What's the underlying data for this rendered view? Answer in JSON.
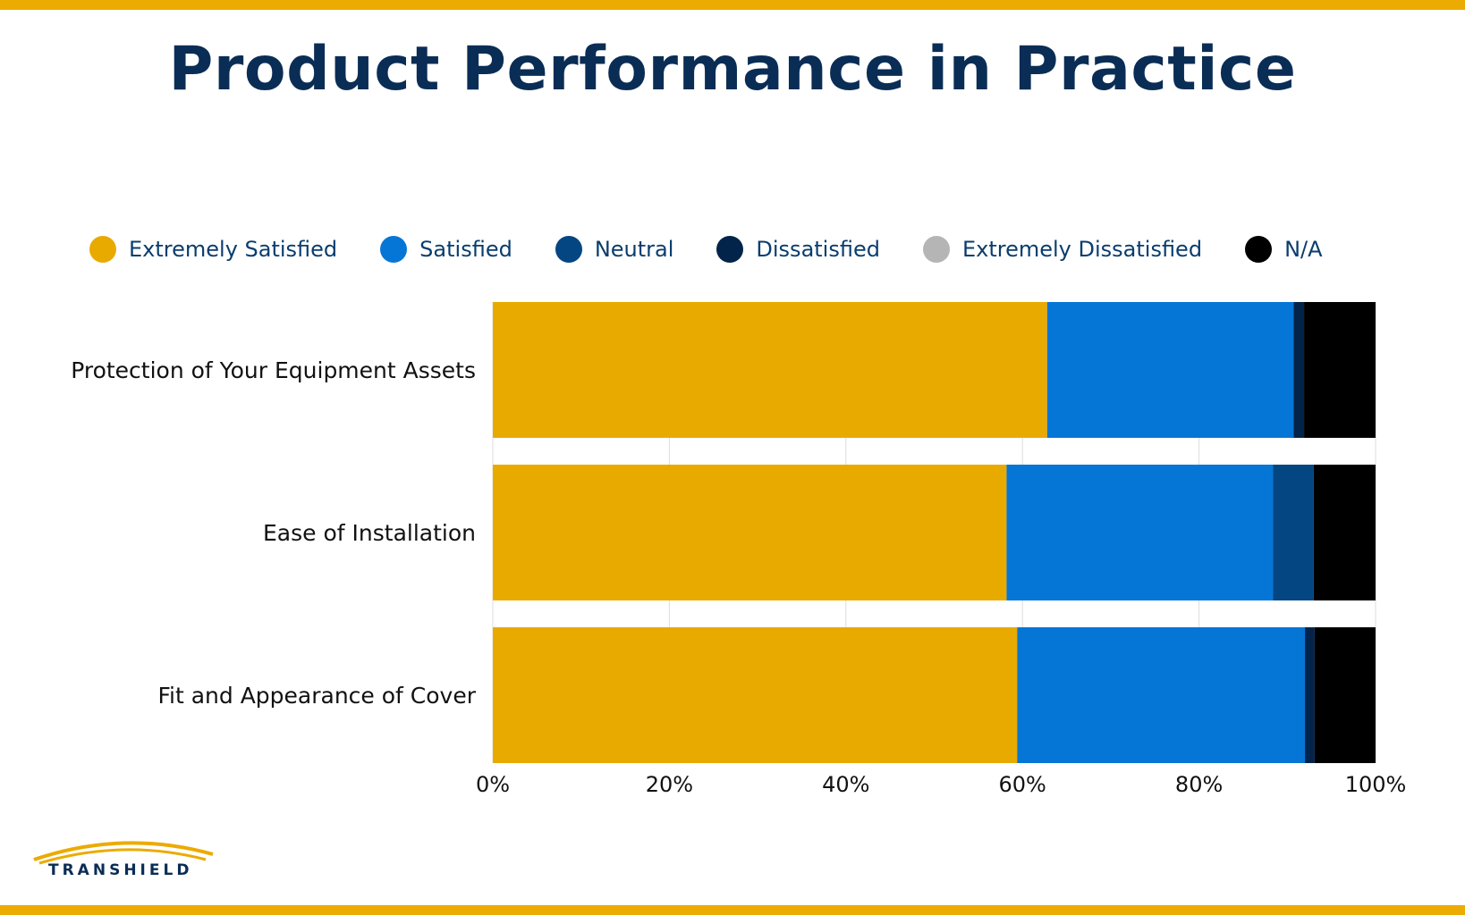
{
  "title": "Product Performance in Practice",
  "brand": {
    "name": "TRANSHIELD",
    "accent_color": "#ebab00",
    "title_color": "#0a2d55"
  },
  "legend": [
    {
      "label": "Extremely Satisfied",
      "color": "#e9aa00"
    },
    {
      "label": "Satisfied",
      "color": "#0676d6"
    },
    {
      "label": "Neutral",
      "color": "#034682"
    },
    {
      "label": "Dissatisfied",
      "color": "#03244a"
    },
    {
      "label": "Extremely Dissatisfied",
      "color": "#b5b5b5"
    },
    {
      "label": "N/A",
      "color": "#000000"
    }
  ],
  "chart_data": {
    "type": "bar",
    "orientation": "horizontal",
    "stacked": true,
    "title": "Product Performance in Practice",
    "categories": [
      "Protection of Your Equipment Assets",
      "Ease of Installation",
      "Fit and Appearance of Cover"
    ],
    "series": [
      {
        "name": "Extremely Satisfied",
        "color": "#e9aa00",
        "values": [
          62.8,
          58.2,
          59.4
        ]
      },
      {
        "name": "Satisfied",
        "color": "#0676d6",
        "values": [
          27.9,
          30.2,
          32.6
        ]
      },
      {
        "name": "Neutral",
        "color": "#034682",
        "values": [
          0.0,
          4.6,
          0.0
        ]
      },
      {
        "name": "Dissatisfied",
        "color": "#03244a",
        "values": [
          1.2,
          0.0,
          1.1
        ]
      },
      {
        "name": "Extremely Dissatisfied",
        "color": "#b5b5b5",
        "values": [
          0.0,
          0.0,
          0.0
        ]
      },
      {
        "name": "N/A",
        "color": "#000000",
        "values": [
          8.1,
          7.0,
          6.9
        ]
      }
    ],
    "xlim": [
      0,
      100
    ],
    "x_ticks": [
      "0%",
      "20%",
      "40%",
      "60%",
      "80%",
      "100%"
    ],
    "grid": true,
    "legend_position": "top"
  }
}
